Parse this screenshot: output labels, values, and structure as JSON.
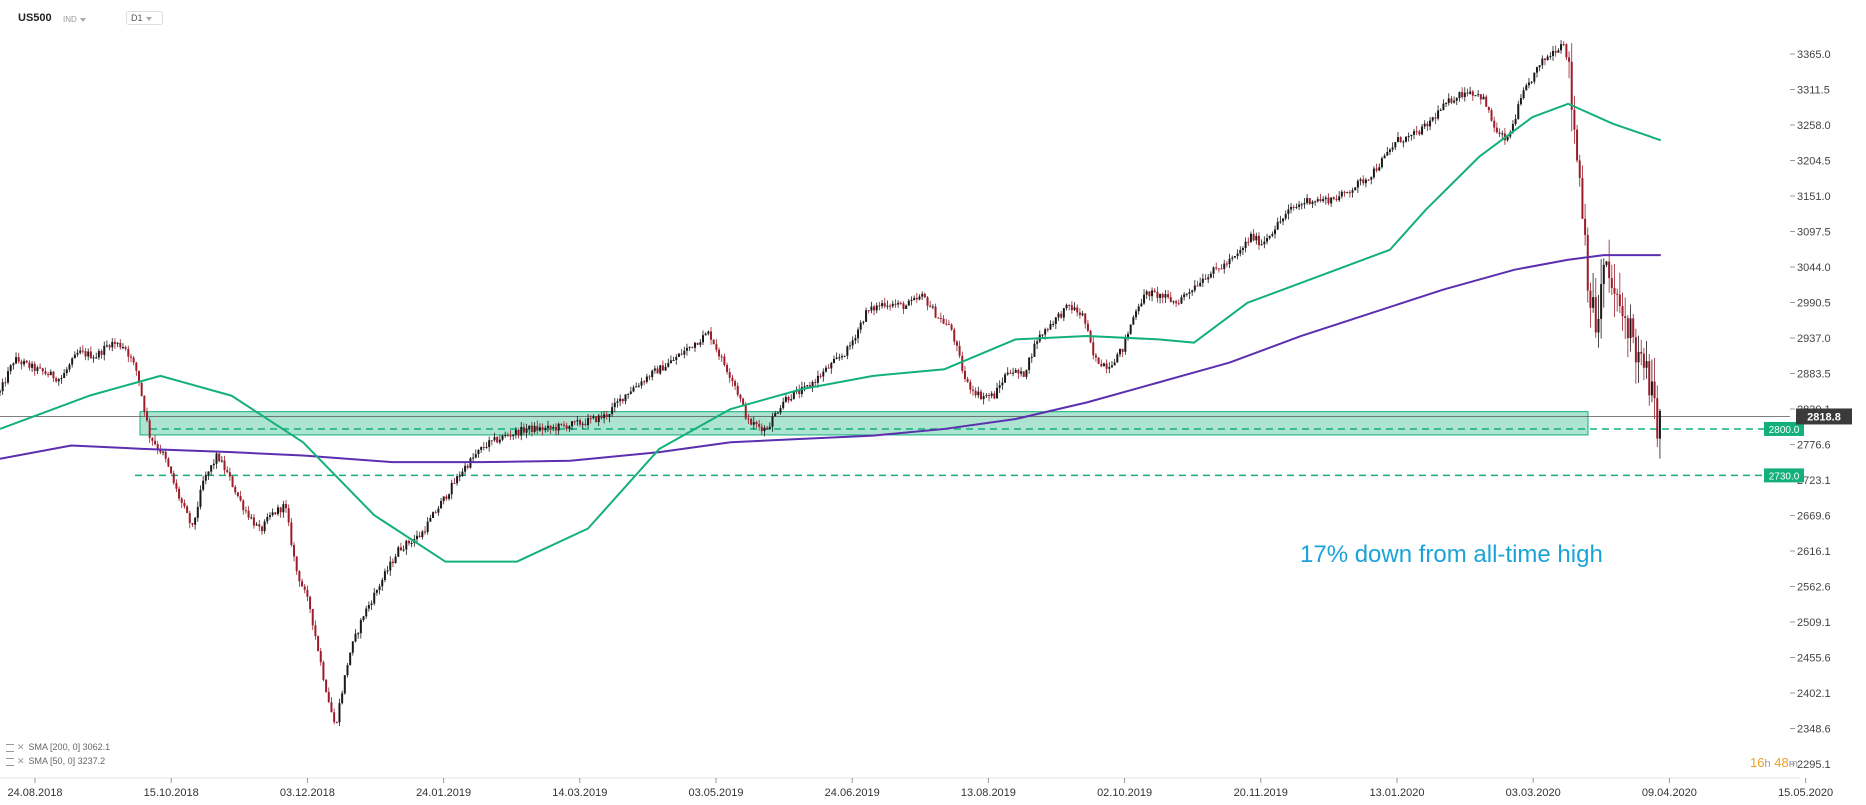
{
  "header": {
    "symbol": "US500",
    "instrument_type": "IND",
    "timeframe": "D1"
  },
  "indicators": [
    {
      "label": "SMA [200, 0]",
      "value": "3062.1"
    },
    {
      "label": "SMA [50, 0]",
      "value": "3237.2"
    }
  ],
  "timer": {
    "hours": "16",
    "h": "h",
    "minutes": "48",
    "m": "m"
  },
  "annotation": "17% down from all-time high",
  "colors": {
    "up": "#1a1a1a",
    "down": "#9c1c2a",
    "sma50": "#13b07a",
    "sma200": "#5b2fb0",
    "zone": "#13b07a",
    "text_annotation": "#1aa3d9"
  },
  "chart_data": {
    "type": "candlestick",
    "ylim": [
      2270,
      3420
    ],
    "y_ticks": [
      "3365.0",
      "3311.5",
      "3258.0",
      "3204.5",
      "3151.0",
      "3097.5",
      "3044.0",
      "2990.5",
      "2937.0",
      "2883.5",
      "2830.1",
      "2776.6",
      "2723.1",
      "2669.6",
      "2616.1",
      "2562.6",
      "2509.1",
      "2455.6",
      "2402.1",
      "2348.6",
      "2295.1"
    ],
    "x_ticks": [
      "24.08.2018",
      "15.10.2018",
      "03.12.2018",
      "24.01.2019",
      "14.03.2019",
      "03.05.2019",
      "24.06.2019",
      "13.08.2019",
      "02.10.2019",
      "20.11.2019",
      "13.01.2020",
      "03.03.2020",
      "09.04.2020",
      "15.05.2020"
    ],
    "current_price": "2818.8",
    "levels": [
      {
        "label": "2800.0",
        "value": 2800
      },
      {
        "label": "2730.0",
        "value": 2730
      }
    ],
    "support_zone": {
      "low": 2800,
      "high": 2820
    },
    "price_path": [
      [
        0,
        2855
      ],
      [
        8,
        2905
      ],
      [
        20,
        2890
      ],
      [
        34,
        2875
      ],
      [
        44,
        2915
      ],
      [
        54,
        2910
      ],
      [
        62,
        2930
      ],
      [
        70,
        2925
      ],
      [
        77,
        2885
      ],
      [
        84,
        2790
      ],
      [
        92,
        2760
      ],
      [
        100,
        2700
      ],
      [
        108,
        2650
      ],
      [
        114,
        2720
      ],
      [
        122,
        2760
      ],
      [
        128,
        2730
      ],
      [
        136,
        2685
      ],
      [
        146,
        2645
      ],
      [
        152,
        2670
      ],
      [
        160,
        2685
      ],
      [
        166,
        2590
      ],
      [
        174,
        2530
      ],
      [
        182,
        2420
      ],
      [
        188,
        2350
      ],
      [
        196,
        2460
      ],
      [
        204,
        2520
      ],
      [
        214,
        2570
      ],
      [
        224,
        2620
      ],
      [
        236,
        2640
      ],
      [
        248,
        2690
      ],
      [
        260,
        2740
      ],
      [
        272,
        2775
      ],
      [
        284,
        2790
      ],
      [
        296,
        2800
      ],
      [
        308,
        2800
      ],
      [
        318,
        2805
      ],
      [
        328,
        2810
      ],
      [
        340,
        2820
      ],
      [
        352,
        2855
      ],
      [
        364,
        2880
      ],
      [
        376,
        2900
      ],
      [
        390,
        2930
      ],
      [
        398,
        2945
      ],
      [
        404,
        2910
      ],
      [
        412,
        2870
      ],
      [
        420,
        2810
      ],
      [
        430,
        2800
      ],
      [
        440,
        2845
      ],
      [
        452,
        2860
      ],
      [
        464,
        2890
      ],
      [
        476,
        2920
      ],
      [
        486,
        2975
      ],
      [
        496,
        2990
      ],
      [
        508,
        2985
      ],
      [
        518,
        3000
      ],
      [
        526,
        2970
      ],
      [
        534,
        2950
      ],
      [
        542,
        2870
      ],
      [
        550,
        2850
      ],
      [
        558,
        2850
      ],
      [
        566,
        2890
      ],
      [
        574,
        2880
      ],
      [
        582,
        2935
      ],
      [
        590,
        2960
      ],
      [
        600,
        2985
      ],
      [
        608,
        2970
      ],
      [
        614,
        2905
      ],
      [
        622,
        2895
      ],
      [
        630,
        2920
      ],
      [
        638,
        2985
      ],
      [
        644,
        3005
      ],
      [
        652,
        3000
      ],
      [
        660,
        2990
      ],
      [
        668,
        3010
      ],
      [
        676,
        3030
      ],
      [
        686,
        3045
      ],
      [
        694,
        3060
      ],
      [
        702,
        3090
      ],
      [
        708,
        3080
      ],
      [
        716,
        3105
      ],
      [
        724,
        3130
      ],
      [
        734,
        3145
      ],
      [
        744,
        3145
      ],
      [
        752,
        3150
      ],
      [
        760,
        3165
      ],
      [
        768,
        3180
      ],
      [
        776,
        3205
      ],
      [
        784,
        3235
      ],
      [
        792,
        3240
      ],
      [
        800,
        3255
      ],
      [
        808,
        3280
      ],
      [
        816,
        3300
      ],
      [
        824,
        3310
      ],
      [
        832,
        3300
      ],
      [
        840,
        3245
      ],
      [
        846,
        3235
      ],
      [
        854,
        3300
      ],
      [
        860,
        3330
      ],
      [
        866,
        3355
      ],
      [
        872,
        3370
      ],
      [
        878,
        3385
      ],
      [
        880,
        3345
      ],
      [
        884,
        3240
      ],
      [
        888,
        3140
      ],
      [
        892,
        3000
      ],
      [
        896,
        2950
      ],
      [
        900,
        3040
      ],
      [
        904,
        3020
      ],
      [
        908,
        2980
      ],
      [
        914,
        2960
      ],
      [
        920,
        2900
      ],
      [
        926,
        2870
      ],
      [
        928,
        2830
      ],
      [
        930,
        2812
      ],
      [
        932,
        2805
      ]
    ],
    "sma50_path": [
      [
        0,
        2800
      ],
      [
        50,
        2850
      ],
      [
        90,
        2880
      ],
      [
        130,
        2850
      ],
      [
        170,
        2780
      ],
      [
        210,
        2670
      ],
      [
        250,
        2600
      ],
      [
        290,
        2600
      ],
      [
        330,
        2650
      ],
      [
        370,
        2770
      ],
      [
        410,
        2830
      ],
      [
        450,
        2860
      ],
      [
        490,
        2880
      ],
      [
        530,
        2890
      ],
      [
        570,
        2935
      ],
      [
        610,
        2940
      ],
      [
        650,
        2935
      ],
      [
        670,
        2930
      ],
      [
        700,
        2990
      ],
      [
        740,
        3030
      ],
      [
        780,
        3070
      ],
      [
        800,
        3130
      ],
      [
        830,
        3210
      ],
      [
        860,
        3270
      ],
      [
        880,
        3290
      ],
      [
        905,
        3260
      ],
      [
        932,
        3235
      ]
    ],
    "sma200_path": [
      [
        0,
        2755
      ],
      [
        40,
        2775
      ],
      [
        80,
        2770
      ],
      [
        130,
        2765
      ],
      [
        170,
        2760
      ],
      [
        220,
        2750
      ],
      [
        270,
        2750
      ],
      [
        320,
        2752
      ],
      [
        370,
        2765
      ],
      [
        410,
        2780
      ],
      [
        450,
        2785
      ],
      [
        490,
        2790
      ],
      [
        530,
        2800
      ],
      [
        570,
        2815
      ],
      [
        610,
        2840
      ],
      [
        650,
        2870
      ],
      [
        690,
        2900
      ],
      [
        730,
        2940
      ],
      [
        770,
        2975
      ],
      [
        810,
        3010
      ],
      [
        850,
        3040
      ],
      [
        880,
        3055
      ],
      [
        900,
        3062
      ],
      [
        932,
        3062
      ]
    ]
  }
}
